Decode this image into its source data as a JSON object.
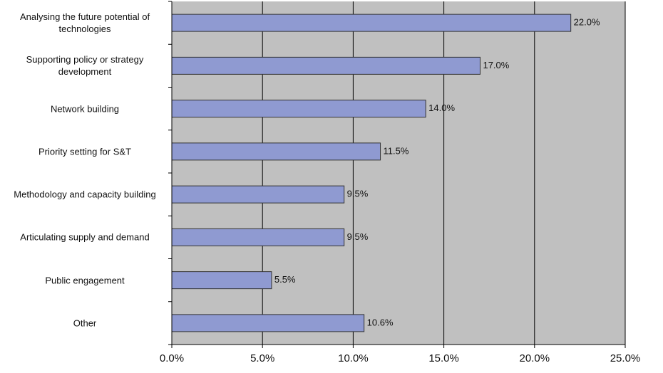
{
  "chart_data": {
    "type": "bar",
    "orientation": "horizontal",
    "categories": [
      "Analysing the future potential of technologies",
      "Supporting  policy or strategy development",
      "Network building",
      "Priority setting for S&T",
      "Methodology and capacity building",
      "Articulating supply and demand",
      "Public engagement",
      "Other"
    ],
    "values": [
      22.0,
      17.0,
      14.0,
      11.5,
      9.5,
      9.5,
      5.5,
      10.6
    ],
    "value_labels": [
      "22.0%",
      "17.0%",
      "14.0%",
      "11.5%",
      "9.5%",
      "9.5%",
      "5.5%",
      "10.6%"
    ],
    "color": "#8f9ad1",
    "xlim": [
      0,
      25
    ],
    "xticks": [
      {
        "value": 0,
        "label": "0.0%"
      },
      {
        "value": 5,
        "label": "5.0%"
      },
      {
        "value": 10,
        "label": "10.0%"
      },
      {
        "value": 15,
        "label": "15.0%"
      },
      {
        "value": 20,
        "label": "20.0%"
      },
      {
        "value": 25,
        "label": "25.0%"
      }
    ],
    "grid": true
  }
}
